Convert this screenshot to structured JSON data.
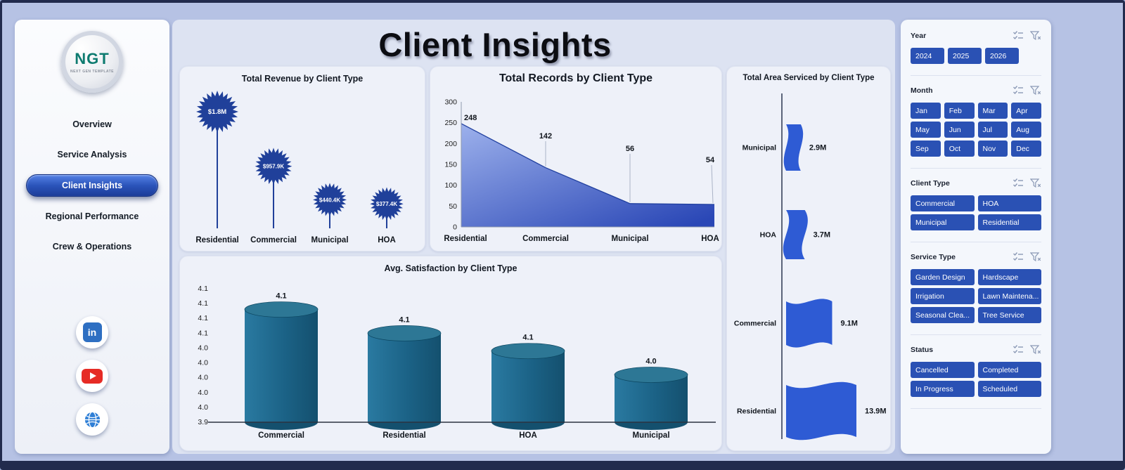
{
  "title": "Client Insights",
  "sidebar": {
    "logo": {
      "text": "NGT",
      "subtext": "NEXT GEN TEMPLATE"
    },
    "items": [
      {
        "label": "Overview",
        "active": false
      },
      {
        "label": "Service Analysis",
        "active": false
      },
      {
        "label": "Client Insights",
        "active": true
      },
      {
        "label": "Regional Performance",
        "active": false
      },
      {
        "label": "Crew & Operations",
        "active": false
      }
    ],
    "socials": [
      {
        "name": "linkedin",
        "glyph": "in"
      },
      {
        "name": "youtube"
      },
      {
        "name": "website"
      }
    ]
  },
  "filters": {
    "sections": [
      {
        "label": "Year",
        "cols": 3,
        "options": [
          "2024",
          "2025",
          "2026"
        ]
      },
      {
        "label": "Month",
        "cols": 4,
        "options": [
          "Jan",
          "Feb",
          "Mar",
          "Apr",
          "May",
          "Jun",
          "Jul",
          "Aug",
          "Sep",
          "Oct",
          "Nov",
          "Dec"
        ]
      },
      {
        "label": "Client Type",
        "cols": 2,
        "options": [
          "Commercial",
          "HOA",
          "Municipal",
          "Residential"
        ]
      },
      {
        "label": "Service Type",
        "cols": 2,
        "options": [
          "Garden Design",
          "Hardscape",
          "Irrigation",
          "Lawn Maintena...",
          "Seasonal Clea...",
          "Tree Service"
        ]
      },
      {
        "label": "Status",
        "cols": 2,
        "options": [
          "Cancelled",
          "Completed",
          "In Progress",
          "Scheduled"
        ]
      }
    ]
  },
  "chart_data": [
    {
      "type": "lollipop",
      "title": "Total Revenue by Client Type",
      "categories": [
        "Residential",
        "Commercial",
        "Municipal",
        "HOA"
      ],
      "values": [
        1800000,
        957900,
        440400,
        377400
      ],
      "labels": [
        "$1.8M",
        "$957.9K",
        "$440.4K",
        "$377.4K"
      ]
    },
    {
      "type": "area",
      "title": "Total Records by Client Type",
      "categories": [
        "Residential",
        "Commercial",
        "Municipal",
        "HOA"
      ],
      "values": [
        248,
        142,
        56,
        54
      ],
      "ylim": [
        0,
        300
      ],
      "yticks": [
        0,
        50,
        100,
        150,
        200,
        250,
        300
      ]
    },
    {
      "type": "flag-funnel",
      "title": "Total Area Serviced by Client Type",
      "categories": [
        "Municipal",
        "HOA",
        "Commercial",
        "Residential"
      ],
      "values": [
        2900000,
        3700000,
        9100000,
        13900000
      ],
      "labels": [
        "2.9M",
        "3.7M",
        "9.1M",
        "13.9M"
      ]
    },
    {
      "type": "cylinder-bar",
      "title": "Avg. Satisfaction by Client Type",
      "categories": [
        "Commercial",
        "Residential",
        "HOA",
        "Municipal"
      ],
      "values": [
        4.1,
        4.1,
        4.1,
        4.0
      ],
      "plot_values": [
        4.09,
        4.05,
        4.02,
        3.98
      ],
      "ylim": [
        3.9,
        4.125
      ],
      "ytick_labels": [
        "4.1",
        "4.1",
        "4.1",
        "4.1",
        "4.0",
        "4.0",
        "4.0",
        "4.0",
        "4.0",
        "3.9"
      ]
    }
  ],
  "colors": {
    "accent_button": "#2a51b4",
    "star": "#20409a",
    "area_light": "#9db1ec",
    "area_dark": "#2a47b6",
    "area_edge": "#21409f",
    "flag": "#2e5bd4",
    "cylinder_light": "#2a7aa1",
    "cylinder_mid": "#1b6286",
    "cylinder_dark": "#14506e",
    "cylinder_top": "#2d7795"
  }
}
